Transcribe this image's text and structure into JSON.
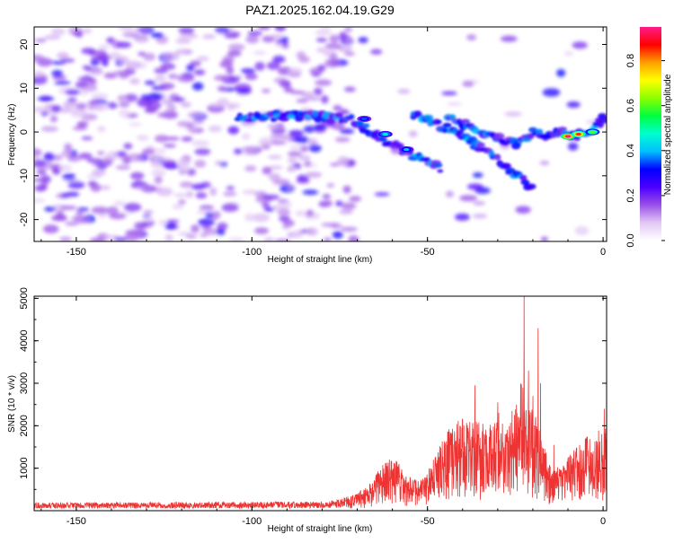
{
  "chart_data": [
    {
      "type": "heatmap",
      "title": "PAZ1.2025.162.04.19.G29",
      "xlabel": "Height of straight line (km)",
      "ylabel": "Frequency (Hz)",
      "xlim": [
        -162,
        1
      ],
      "ylim": [
        -25,
        24
      ],
      "xticks": [
        -150,
        -100,
        -50,
        0
      ],
      "yticks": [
        -20,
        -10,
        0,
        10,
        20
      ],
      "colorbar": {
        "label": "Normalized spectral amplitude",
        "range": [
          0.0,
          0.95
        ],
        "ticks": [
          "0.0",
          "0.2",
          "0.4",
          "0.6",
          "0.8"
        ],
        "colors": [
          "#ffffff",
          "#e2c8f5",
          "#9a50e8",
          "#4b00ff",
          "#0000ff",
          "#00bfff",
          "#00ffd0",
          "#00ff40",
          "#8cff00",
          "#ffff00",
          "#ffa000",
          "#ff0000",
          "#ff1c8a"
        ]
      },
      "ridge": {
        "segments": [
          {
            "x": [
              -104,
              -95,
              -88,
              -80,
              -72,
              -66,
              -60,
              -55,
              -50,
              -46
            ],
            "y": [
              3.5,
              3.5,
              4,
              3.5,
              3,
              0,
              -3,
              -5,
              -6.5,
              -8.5
            ]
          },
          {
            "x": [
              -54,
              -50,
              -45,
              -40,
              -36,
              -32,
              -28,
              -24,
              -20
            ],
            "y": [
              4,
              3,
              1,
              -1,
              -3,
              -5,
              -8,
              -10,
              -13
            ]
          },
          {
            "x": [
              -44,
              -40,
              -36,
              -32,
              -28,
              -24,
              -20,
              -16,
              -12,
              -8,
              -4,
              0,
              1
            ],
            "y": [
              4,
              2,
              0,
              -1,
              -2,
              -3,
              0,
              -1,
              0,
              -1,
              0,
              3,
              4
            ]
          }
        ],
        "peaks": [
          {
            "x": -10,
            "y": -1,
            "amplitude": 0.95
          },
          {
            "x": -7,
            "y": -0.5,
            "amplitude": 0.85
          },
          {
            "x": -3,
            "y": 0,
            "amplitude": 0.6
          },
          {
            "x": -62,
            "y": -0.5,
            "amplitude": 0.45
          },
          {
            "x": -56,
            "y": -4,
            "amplitude": 0.4
          },
          {
            "x": -68,
            "y": 3,
            "amplitude": 0.35
          }
        ],
        "background_amplitude": 0.15
      }
    },
    {
      "type": "line",
      "title": "",
      "xlabel": "Height of straight line (km)",
      "ylabel": "SNR (10 * v/v)",
      "xlim": [
        -162,
        1
      ],
      "ylim": [
        0,
        5050
      ],
      "xticks": [
        -150,
        -100,
        -50,
        0
      ],
      "yticks": [
        1000,
        2000,
        3000,
        4000,
        5000
      ],
      "series": [
        {
          "color": "#ee3333",
          "envelope": {
            "x": [
              -162,
              -120,
              -80,
              -75,
              -70,
              -66,
              -63,
              -60,
              -56,
              -52,
              -50,
              -48,
              -45,
              -42,
              -39,
              -36,
              -33,
              -30,
              -28,
              -25,
              -23,
              -21,
              -19,
              -17,
              -15,
              -12,
              -9,
              -6,
              -3,
              -1,
              0,
              1
            ],
            "y": [
              140,
              150,
              160,
              200,
              300,
              500,
              800,
              950,
              600,
              500,
              650,
              900,
              1300,
              1500,
              1600,
              1500,
              1500,
              1700,
              1500,
              1800,
              2300,
              1800,
              1600,
              1100,
              800,
              700,
              1000,
              1200,
              1300,
              1400,
              1450,
              1400
            ]
          },
          "spikes": [
            {
              "x": -36.5,
              "y": 2950
            },
            {
              "x": -30,
              "y": 2550
            },
            {
              "x": -24.5,
              "y": 2300
            },
            {
              "x": -22.5,
              "y": 5050
            },
            {
              "x": -21.2,
              "y": 3300
            },
            {
              "x": -20,
              "y": 2700
            },
            {
              "x": -18.5,
              "y": 4300
            },
            {
              "x": -17.8,
              "y": 3000
            },
            {
              "x": -14,
              "y": 1550
            },
            {
              "x": 0.3,
              "y": 2400
            }
          ]
        }
      ]
    }
  ]
}
